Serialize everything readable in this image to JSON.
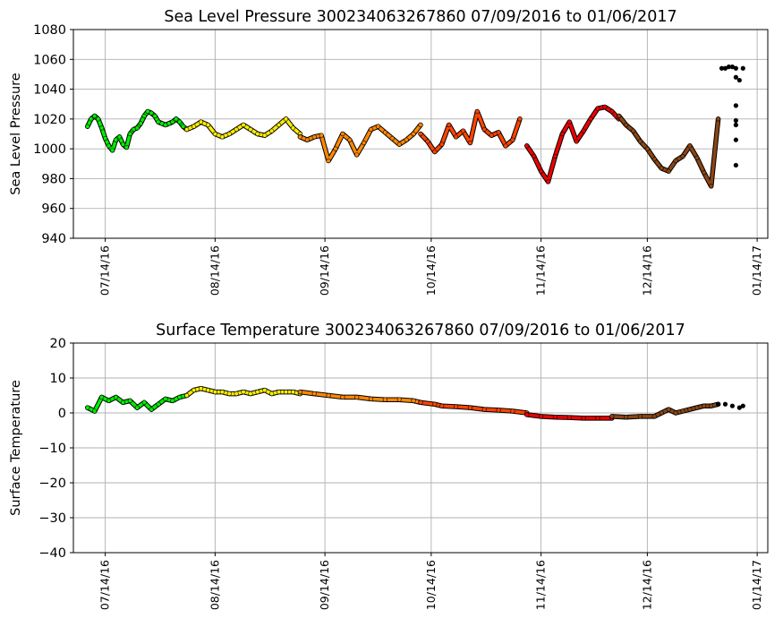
{
  "chart_data": [
    {
      "type": "scatter",
      "title": "Sea Level Pressure 300234063267860  07/09/2016 to 01/06/2017",
      "xlabel": "",
      "ylabel": "Sea Level Pressure",
      "ylim": [
        940,
        1080
      ],
      "yticks": [
        "940",
        "960",
        "980",
        "1000",
        "1020",
        "1040",
        "1060",
        "1080"
      ],
      "xlim_days": [
        -4,
        192
      ],
      "xtick_days": [
        5,
        36,
        67,
        97,
        128,
        158,
        189
      ],
      "xticks": [
        "07/14/16",
        "08/14/16",
        "09/14/16",
        "10/14/16",
        "11/14/16",
        "12/14/16",
        "01/14/17"
      ],
      "grid": true,
      "series": [
        {
          "name": "segment-1",
          "color": "#00ee00",
          "day": [
            0,
            1,
            2,
            3,
            4,
            5,
            6,
            7,
            8,
            9,
            10,
            11,
            12,
            13,
            14,
            15,
            16,
            17,
            18,
            19,
            20,
            21,
            22,
            23,
            24,
            25,
            26,
            27,
            28
          ],
          "value": [
            1015,
            1020,
            1022,
            1020,
            1014,
            1007,
            1002,
            999,
            1006,
            1008,
            1003,
            1001,
            1010,
            1013,
            1014,
            1017,
            1022,
            1025,
            1024,
            1022,
            1018,
            1017,
            1016,
            1017,
            1018,
            1020,
            1018,
            1015,
            1013
          ]
        },
        {
          "name": "segment-2",
          "color": "#ffee00",
          "day": [
            28,
            30,
            32,
            34,
            36,
            38,
            40,
            42,
            44,
            46,
            48,
            50,
            52,
            54,
            56,
            58,
            60
          ],
          "value": [
            1013,
            1015,
            1018,
            1016,
            1010,
            1008,
            1010,
            1013,
            1016,
            1013,
            1010,
            1009,
            1012,
            1016,
            1020,
            1014,
            1010
          ]
        },
        {
          "name": "segment-3",
          "color": "#ff8800",
          "day": [
            60,
            62,
            64,
            66,
            68,
            70,
            72,
            74,
            76,
            78,
            80,
            82,
            84,
            86,
            88,
            90,
            92,
            94
          ],
          "value": [
            1008,
            1006,
            1008,
            1009,
            992,
            1000,
            1010,
            1006,
            996,
            1004,
            1013,
            1015,
            1011,
            1007,
            1003,
            1006,
            1010,
            1016
          ]
        },
        {
          "name": "segment-4",
          "color": "#ff4400",
          "day": [
            94,
            96,
            98,
            100,
            102,
            104,
            106,
            108,
            110,
            112,
            114,
            116,
            118,
            120,
            122
          ],
          "value": [
            1010,
            1005,
            998,
            1003,
            1016,
            1008,
            1012,
            1004,
            1025,
            1013,
            1009,
            1011,
            1002,
            1006,
            1020
          ]
        },
        {
          "name": "segment-5",
          "color": "#ee0000",
          "day": [
            124,
            126,
            128,
            130,
            132,
            134,
            136,
            138,
            140,
            142,
            144,
            146,
            148,
            150
          ],
          "value": [
            1002,
            995,
            985,
            978,
            995,
            1010,
            1018,
            1005,
            1012,
            1020,
            1027,
            1028,
            1025,
            1020
          ]
        },
        {
          "name": "segment-6",
          "color": "#8b4513",
          "day": [
            150,
            152,
            154,
            156,
            158,
            160,
            162,
            164,
            166,
            168,
            170,
            172,
            174,
            176,
            178
          ],
          "value": [
            1022,
            1016,
            1012,
            1005,
            1000,
            993,
            987,
            985,
            992,
            995,
            1002,
            994,
            984,
            975,
            1020
          ]
        },
        {
          "name": "segment-7",
          "color": "#000000",
          "day": [
            179,
            180,
            181,
            182,
            183,
            183,
            183,
            183,
            183,
            183,
            183,
            184,
            185
          ],
          "value": [
            1054,
            1054,
            1055,
            1055,
            1054,
            1048,
            1029,
            1019,
            1006,
            1016,
            989,
            1046,
            1054
          ]
        }
      ]
    },
    {
      "type": "scatter",
      "title": "Surface Temperature 300234063267860  07/09/2016 to 01/06/2017",
      "xlabel": "",
      "ylabel": "Surface Temperature",
      "ylim": [
        -40,
        20
      ],
      "yticks": [
        "−40",
        "−30",
        "−20",
        "−10",
        "0",
        "10",
        "20"
      ],
      "xlim_days": [
        -4,
        192
      ],
      "xtick_days": [
        5,
        36,
        67,
        97,
        128,
        158,
        189
      ],
      "xticks": [
        "07/14/16",
        "08/14/16",
        "09/14/16",
        "10/14/16",
        "11/14/16",
        "12/14/16",
        "01/14/17"
      ],
      "grid": true,
      "series": [
        {
          "name": "segment-1",
          "color": "#00ee00",
          "day": [
            0,
            2,
            4,
            6,
            8,
            10,
            12,
            14,
            16,
            18,
            20,
            22,
            24,
            26,
            28
          ],
          "value": [
            1.5,
            0.5,
            4.5,
            3.5,
            4.5,
            3,
            3.5,
            1.5,
            3,
            1,
            2.5,
            4,
            3.5,
            4.5,
            5
          ]
        },
        {
          "name": "segment-2",
          "color": "#ffee00",
          "day": [
            28,
            30,
            32,
            34,
            36,
            38,
            40,
            42,
            44,
            46,
            48,
            50,
            52,
            54,
            56,
            58,
            60
          ],
          "value": [
            5,
            6.5,
            7,
            6.5,
            6,
            6,
            5.5,
            5.5,
            6,
            5.5,
            6,
            6.5,
            5.5,
            6,
            6,
            6,
            5.5
          ]
        },
        {
          "name": "segment-3",
          "color": "#ff8800",
          "day": [
            60,
            64,
            68,
            72,
            76,
            80,
            84,
            88,
            92,
            94
          ],
          "value": [
            6,
            5.5,
            5,
            4.5,
            4.5,
            4,
            3.8,
            3.8,
            3.5,
            3
          ]
        },
        {
          "name": "segment-4",
          "color": "#ff4400",
          "day": [
            94,
            98,
            100,
            104,
            108,
            112,
            116,
            120,
            124
          ],
          "value": [
            3,
            2.5,
            2,
            1.8,
            1.5,
            1,
            0.8,
            0.5,
            0
          ]
        },
        {
          "name": "segment-5",
          "color": "#ee0000",
          "day": [
            124,
            128,
            132,
            136,
            140,
            144,
            148
          ],
          "value": [
            -0.5,
            -1,
            -1.2,
            -1.3,
            -1.5,
            -1.5,
            -1.5
          ]
        },
        {
          "name": "segment-6",
          "color": "#8b4513",
          "day": [
            148,
            152,
            156,
            160,
            162,
            164,
            166,
            168,
            170,
            172,
            174,
            176,
            178
          ],
          "value": [
            -1,
            -1.2,
            -1,
            -1,
            0,
            1,
            0,
            0.5,
            1,
            1.5,
            2,
            2,
            2.5
          ]
        },
        {
          "name": "segment-7",
          "color": "#000000",
          "day": [
            178,
            180,
            182,
            184,
            185
          ],
          "value": [
            2.5,
            2.5,
            2,
            1.5,
            2
          ]
        }
      ]
    }
  ]
}
